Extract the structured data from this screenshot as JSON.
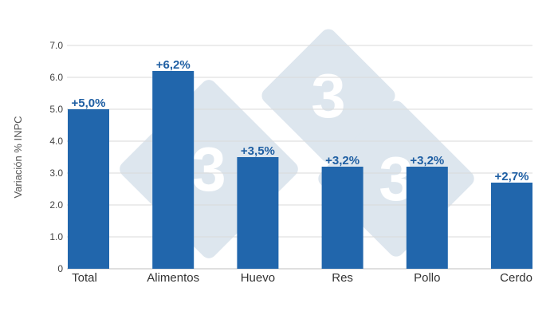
{
  "chart_data": {
    "type": "bar",
    "categories": [
      "Total",
      "Alimentos",
      "Huevo",
      "Res",
      "Pollo",
      "Cerdo"
    ],
    "values": [
      5.0,
      6.2,
      3.5,
      3.2,
      3.2,
      2.7
    ],
    "data_labels": [
      "+5,0%",
      "+6,2%",
      "+3,5%",
      "+3,2%",
      "+3,2%",
      "+2,7%"
    ],
    "ylabel": "Variación % INPC",
    "ylim": [
      0,
      7
    ],
    "yticks": [
      0,
      1,
      2,
      3,
      4,
      5,
      6,
      7
    ],
    "ytick_labels": [
      "0",
      "1.0",
      "2.0",
      "3.0",
      "4.0",
      "5.0",
      "6.0",
      "7.0"
    ],
    "grid": true,
    "bar_color": "#2166ac",
    "label_color": "#1f5fa3",
    "grid_color": "#d9d9d9",
    "watermark": {
      "text": "3",
      "color": "#dde6ee"
    }
  }
}
